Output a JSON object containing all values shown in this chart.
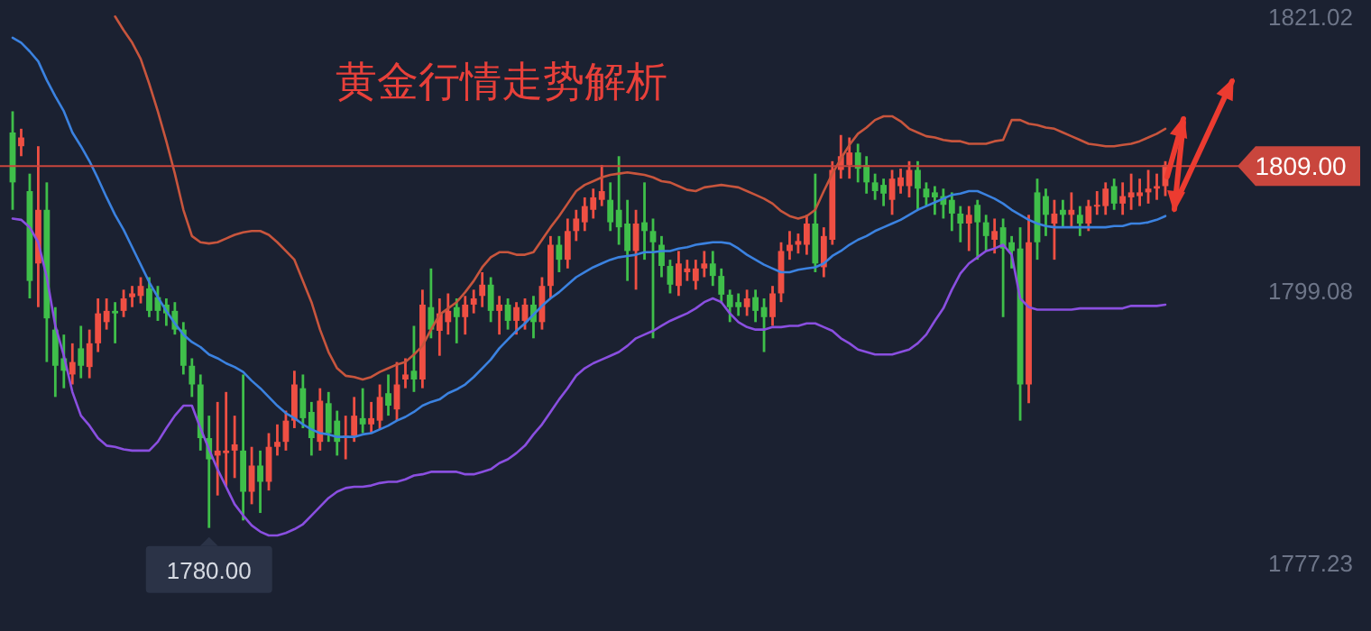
{
  "chart_data": {
    "type": "candlestick",
    "title": "黄金行情走势解析",
    "categories": [
      null,
      null,
      null,
      null,
      null,
      null,
      null,
      null,
      null,
      null,
      null,
      null,
      null,
      null,
      null,
      null,
      null,
      null,
      null,
      null,
      null,
      null,
      null,
      null,
      null,
      null,
      null,
      null,
      null,
      null,
      null,
      null,
      null,
      null,
      null,
      null,
      null,
      null,
      null,
      null,
      null,
      null,
      null,
      null,
      null,
      null,
      null,
      null,
      null,
      null,
      null,
      null,
      null,
      null,
      null,
      null,
      null,
      null,
      null,
      null,
      null,
      null,
      null,
      null,
      null,
      null,
      null,
      null,
      null,
      null,
      null,
      null,
      null,
      null,
      null,
      null,
      null,
      null,
      null,
      null,
      null,
      null,
      null,
      null,
      null,
      null,
      null,
      null,
      null,
      null,
      null,
      null,
      null,
      null,
      null,
      null,
      null,
      null,
      null,
      null,
      null,
      null,
      null,
      null,
      null,
      null,
      null,
      null,
      null,
      null,
      null,
      null,
      null,
      null,
      null,
      null,
      null,
      null,
      null,
      null,
      null,
      null,
      null,
      null,
      null,
      null,
      null,
      null,
      null,
      null,
      null,
      null,
      null,
      null,
      null,
      null
    ],
    "ohlc": [
      [
        1811.7,
        1813.4,
        1805.5,
        1807.7
      ],
      [
        1810.6,
        1812.0,
        1809.8,
        1811.3
      ],
      [
        1807.0,
        1808.4,
        1798.4,
        1799.8
      ],
      [
        1801.2,
        1810.6,
        1797.7,
        1805.5
      ],
      [
        1805.5,
        1807.7,
        1793.3,
        1796.8
      ],
      [
        1795.9,
        1797.7,
        1790.5,
        1793.0
      ],
      [
        1793.6,
        1795.5,
        1791.2,
        1792.6
      ],
      [
        1792.3,
        1794.8,
        1791.5,
        1793.3
      ],
      [
        1794.4,
        1796.2,
        1792.0,
        1793.0
      ],
      [
        1792.9,
        1795.9,
        1792.0,
        1794.8
      ],
      [
        1794.8,
        1798.4,
        1794.1,
        1797.2
      ],
      [
        1796.5,
        1798.4,
        1795.9,
        1797.4
      ],
      [
        1797.4,
        1798.1,
        1794.8,
        1797.2
      ],
      [
        1797.4,
        1799.1,
        1796.9,
        1798.4
      ],
      [
        1798.5,
        1799.4,
        1797.7,
        1798.8
      ],
      [
        1798.6,
        1800.1,
        1798.0,
        1799.4
      ],
      [
        1799.2,
        1800.1,
        1796.9,
        1797.4
      ],
      [
        1798.5,
        1799.4,
        1796.6,
        1797.4
      ],
      [
        1797.9,
        1798.4,
        1796.2,
        1797.2
      ],
      [
        1797.4,
        1798.1,
        1795.5,
        1795.9
      ],
      [
        1795.9,
        1796.5,
        1792.3,
        1793.0
      ],
      [
        1793.0,
        1793.6,
        1790.5,
        1791.5
      ],
      [
        1791.5,
        1792.3,
        1786.2,
        1787.2
      ],
      [
        1787.2,
        1789.0,
        1780.0,
        1785.5
      ],
      [
        1785.8,
        1790.1,
        1782.6,
        1786.2
      ],
      [
        1786.0,
        1790.9,
        1783.3,
        1786.2
      ],
      [
        1786.2,
        1789.0,
        1784.0,
        1786.7
      ],
      [
        1786.2,
        1792.3,
        1780.6,
        1782.9
      ],
      [
        1782.9,
        1786.5,
        1781.9,
        1785.0
      ],
      [
        1785.0,
        1786.2,
        1781.2,
        1783.7
      ],
      [
        1783.7,
        1787.6,
        1783.0,
        1786.5
      ],
      [
        1786.5,
        1788.3,
        1785.8,
        1786.9
      ],
      [
        1786.9,
        1789.4,
        1786.2,
        1788.6
      ],
      [
        1788.6,
        1792.6,
        1788.0,
        1791.5
      ],
      [
        1791.2,
        1792.3,
        1788.0,
        1788.8
      ],
      [
        1789.3,
        1790.1,
        1785.8,
        1787.2
      ],
      [
        1786.9,
        1791.2,
        1786.2,
        1790.2
      ],
      [
        1790.0,
        1790.9,
        1786.9,
        1787.6
      ],
      [
        1788.6,
        1789.4,
        1785.8,
        1786.9
      ],
      [
        1787.2,
        1789.0,
        1785.5,
        1787.4
      ],
      [
        1787.4,
        1790.5,
        1786.9,
        1789.0
      ],
      [
        1788.8,
        1791.2,
        1787.6,
        1788.3
      ],
      [
        1788.3,
        1790.1,
        1787.6,
        1788.8
      ],
      [
        1788.6,
        1791.5,
        1787.9,
        1790.5
      ],
      [
        1790.8,
        1792.3,
        1789.0,
        1789.8
      ],
      [
        1789.5,
        1793.3,
        1788.6,
        1791.5
      ],
      [
        1791.9,
        1793.6,
        1791.2,
        1792.3
      ],
      [
        1792.6,
        1796.2,
        1790.9,
        1791.9
      ],
      [
        1791.9,
        1799.1,
        1791.2,
        1797.9
      ],
      [
        1797.7,
        1800.8,
        1795.2,
        1795.9
      ],
      [
        1795.8,
        1798.4,
        1793.8,
        1797.2
      ],
      [
        1796.5,
        1798.8,
        1795.5,
        1797.4
      ],
      [
        1797.7,
        1798.4,
        1794.8,
        1796.9
      ],
      [
        1796.9,
        1798.6,
        1795.5,
        1797.9
      ],
      [
        1797.9,
        1799.1,
        1797.2,
        1798.4
      ],
      [
        1798.6,
        1800.5,
        1797.7,
        1799.5
      ],
      [
        1799.5,
        1800.1,
        1796.5,
        1797.4
      ],
      [
        1797.4,
        1798.6,
        1795.5,
        1797.9
      ],
      [
        1797.9,
        1798.4,
        1795.9,
        1796.6
      ],
      [
        1796.6,
        1798.1,
        1795.5,
        1797.7
      ],
      [
        1796.6,
        1798.4,
        1795.9,
        1797.9
      ],
      [
        1797.9,
        1798.6,
        1795.2,
        1796.5
      ],
      [
        1796.5,
        1800.1,
        1795.9,
        1799.4
      ],
      [
        1799.4,
        1803.4,
        1798.4,
        1802.7
      ],
      [
        1802.7,
        1803.4,
        1800.5,
        1801.5
      ],
      [
        1801.5,
        1804.8,
        1800.8,
        1803.8
      ],
      [
        1803.8,
        1805.5,
        1803.0,
        1804.8
      ],
      [
        1804.5,
        1806.5,
        1803.8,
        1805.8
      ],
      [
        1805.5,
        1807.2,
        1804.8,
        1806.5
      ],
      [
        1806.3,
        1809.1,
        1805.8,
        1807.0
      ],
      [
        1806.3,
        1807.7,
        1803.8,
        1804.5
      ],
      [
        1805.5,
        1809.8,
        1802.7,
        1804.1
      ],
      [
        1804.4,
        1806.3,
        1799.8,
        1802.2
      ],
      [
        1802.2,
        1805.5,
        1799.1,
        1804.4
      ],
      [
        1804.5,
        1807.7,
        1801.5,
        1803.8
      ],
      [
        1803.8,
        1804.8,
        1795.2,
        1802.9
      ],
      [
        1802.7,
        1803.4,
        1800.1,
        1801.0
      ],
      [
        1801.0,
        1801.5,
        1798.8,
        1799.5
      ],
      [
        1799.4,
        1802.2,
        1798.6,
        1801.2
      ],
      [
        1800.5,
        1801.5,
        1799.8,
        1800.8
      ],
      [
        1799.8,
        1801.5,
        1799.1,
        1800.8
      ],
      [
        1800.8,
        1802.2,
        1800.1,
        1801.2
      ],
      [
        1801.2,
        1802.2,
        1799.4,
        1800.2
      ],
      [
        1800.2,
        1800.8,
        1798.0,
        1798.7
      ],
      [
        1798.7,
        1799.1,
        1796.5,
        1797.7
      ],
      [
        1798.1,
        1798.8,
        1797.0,
        1797.7
      ],
      [
        1797.7,
        1799.1,
        1797.0,
        1798.4
      ],
      [
        1798.5,
        1799.1,
        1796.5,
        1797.4
      ],
      [
        1797.7,
        1798.4,
        1794.1,
        1796.9
      ],
      [
        1796.9,
        1799.4,
        1796.2,
        1798.8
      ],
      [
        1798.8,
        1802.9,
        1798.1,
        1802.2
      ],
      [
        1802.2,
        1803.8,
        1801.5,
        1802.7
      ],
      [
        1802.7,
        1803.6,
        1802.0,
        1803.0
      ],
      [
        1802.7,
        1805.1,
        1801.9,
        1804.4
      ],
      [
        1804.4,
        1808.4,
        1800.5,
        1801.2
      ],
      [
        1800.9,
        1804.1,
        1800.1,
        1803.4
      ],
      [
        1803.1,
        1809.4,
        1802.7,
        1808.7
      ],
      [
        1808.7,
        1811.5,
        1808.0,
        1809.8
      ],
      [
        1809.1,
        1811.3,
        1808.0,
        1810.1
      ],
      [
        1810.1,
        1810.8,
        1807.7,
        1808.8
      ],
      [
        1809.1,
        1809.8,
        1806.8,
        1807.7
      ],
      [
        1807.7,
        1808.4,
        1806.3,
        1807.0
      ],
      [
        1807.5,
        1808.0,
        1805.8,
        1806.8
      ],
      [
        1806.3,
        1808.7,
        1805.1,
        1808.0
      ],
      [
        1807.4,
        1808.8,
        1806.8,
        1808.1
      ],
      [
        1807.4,
        1809.4,
        1806.5,
        1808.7
      ],
      [
        1808.7,
        1809.4,
        1805.5,
        1807.2
      ],
      [
        1807.2,
        1807.7,
        1805.8,
        1806.5
      ],
      [
        1806.9,
        1807.4,
        1805.1,
        1806.5
      ],
      [
        1806.6,
        1807.2,
        1804.8,
        1805.9
      ],
      [
        1806.3,
        1806.9,
        1803.8,
        1805.2
      ],
      [
        1805.2,
        1805.8,
        1802.9,
        1804.4
      ],
      [
        1804.4,
        1805.8,
        1802.2,
        1805.1
      ],
      [
        1805.9,
        1806.3,
        1801.5,
        1804.5
      ],
      [
        1804.5,
        1805.1,
        1802.2,
        1803.4
      ],
      [
        1803.1,
        1804.8,
        1802.0,
        1803.8
      ],
      [
        1804.1,
        1804.8,
        1796.9,
        1802.4
      ],
      [
        1802.9,
        1803.4,
        1800.8,
        1802.2
      ],
      [
        1802.4,
        1804.1,
        1788.6,
        1791.5
      ],
      [
        1791.5,
        1805.1,
        1790.0,
        1802.9
      ],
      [
        1806.9,
        1808.0,
        1801.5,
        1802.9
      ],
      [
        1806.6,
        1807.2,
        1803.4,
        1805.1
      ],
      [
        1804.4,
        1806.3,
        1801.5,
        1805.2
      ],
      [
        1805.5,
        1806.3,
        1804.1,
        1805.1
      ],
      [
        1805.1,
        1806.9,
        1804.1,
        1805.5
      ],
      [
        1805.1,
        1805.8,
        1803.4,
        1804.4
      ],
      [
        1804.4,
        1806.3,
        1803.8,
        1805.8
      ],
      [
        1805.8,
        1807.0,
        1805.1,
        1805.9
      ],
      [
        1805.8,
        1807.7,
        1805.1,
        1807.2
      ],
      [
        1807.4,
        1808.0,
        1805.5,
        1806.0
      ],
      [
        1806.0,
        1807.7,
        1805.1,
        1806.6
      ],
      [
        1806.5,
        1808.4,
        1805.5,
        1806.9
      ],
      [
        1806.6,
        1808.0,
        1805.8,
        1806.9
      ],
      [
        1806.9,
        1808.7,
        1806.0,
        1807.2
      ],
      [
        1807.2,
        1808.4,
        1806.3,
        1807.4
      ],
      [
        1807.4,
        1809.4,
        1806.6,
        1809.1
      ]
    ],
    "series": [
      {
        "type": "line",
        "color": "#c8553d",
        "values": [
          null,
          null,
          null,
          null,
          null,
          null,
          null,
          null,
          null,
          null,
          null,
          null,
          1821.0,
          1819.9,
          1818.9,
          1817.6,
          1815.6,
          1813.4,
          1811.0,
          1808.4,
          1805.5,
          1803.4,
          1802.9,
          1802.8,
          1802.9,
          1803.2,
          1803.5,
          1803.7,
          1803.8,
          1803.8,
          1803.5,
          1802.9,
          1802.2,
          1801.5,
          1799.8,
          1798.1,
          1795.9,
          1794.1,
          1792.8,
          1792.2,
          1792.1,
          1791.9,
          1792.1,
          1792.5,
          1792.8,
          1793.1,
          1793.3,
          1793.9,
          1794.6,
          1795.9,
          1797.1,
          1797.6,
          1798.1,
          1798.9,
          1799.8,
          1800.9,
          1801.7,
          1802.1,
          1802.1,
          1801.9,
          1801.9,
          1802.1,
          1803.1,
          1804.1,
          1805.0,
          1806.0,
          1807.0,
          1807.5,
          1807.8,
          1808.1,
          1808.3,
          1808.4,
          1808.5,
          1808.4,
          1808.3,
          1808.1,
          1807.8,
          1807.7,
          1807.4,
          1807.1,
          1807.0,
          1807.3,
          1807.4,
          1807.5,
          1807.4,
          1807.3,
          1807.0,
          1806.7,
          1806.4,
          1806.0,
          1805.4,
          1805.0,
          1804.8,
          1805.0,
          1805.5,
          1807.0,
          1808.4,
          1809.6,
          1810.7,
          1811.6,
          1812.1,
          1812.7,
          1813.0,
          1813.0,
          1812.6,
          1812.0,
          1811.7,
          1811.4,
          1811.3,
          1811.1,
          1811.0,
          1811.0,
          1810.8,
          1810.8,
          1810.8,
          1811.0,
          1811.1,
          1812.7,
          1812.7,
          1812.4,
          1812.3,
          1812.1,
          1812.0,
          1811.7,
          1811.4,
          1811.1,
          1810.8,
          1810.7,
          1810.6,
          1810.6,
          1810.7,
          1810.8,
          1811.0,
          1811.3,
          1811.6,
          1812.0
        ]
      },
      {
        "type": "line",
        "color": "#3b82e0",
        "values": [
          1819.3,
          1818.9,
          1818.2,
          1817.4,
          1815.9,
          1814.6,
          1813.4,
          1811.7,
          1810.6,
          1809.4,
          1808.0,
          1806.5,
          1805.1,
          1803.9,
          1802.5,
          1801.1,
          1799.7,
          1798.5,
          1797.4,
          1796.4,
          1795.5,
          1794.9,
          1794.5,
          1793.9,
          1793.6,
          1793.2,
          1792.9,
          1792.5,
          1791.8,
          1791.2,
          1790.5,
          1789.8,
          1789.2,
          1788.8,
          1788.3,
          1787.9,
          1787.6,
          1787.5,
          1787.3,
          1787.3,
          1787.3,
          1787.5,
          1787.6,
          1787.9,
          1788.2,
          1788.6,
          1788.9,
          1789.3,
          1789.8,
          1790.1,
          1790.3,
          1790.8,
          1791.1,
          1791.5,
          1792.1,
          1792.8,
          1793.5,
          1794.4,
          1795.1,
          1795.8,
          1796.4,
          1797.1,
          1797.8,
          1798.4,
          1798.9,
          1799.5,
          1800.1,
          1800.5,
          1800.9,
          1801.2,
          1801.5,
          1801.7,
          1801.8,
          1801.9,
          1802.1,
          1802.1,
          1802.2,
          1802.2,
          1802.4,
          1802.5,
          1802.7,
          1802.8,
          1802.9,
          1802.9,
          1802.8,
          1802.4,
          1801.9,
          1801.5,
          1801.1,
          1800.8,
          1800.5,
          1800.5,
          1800.7,
          1800.8,
          1800.9,
          1801.2,
          1801.8,
          1802.2,
          1802.7,
          1803.1,
          1803.4,
          1803.8,
          1804.1,
          1804.4,
          1804.7,
          1805.1,
          1805.5,
          1805.8,
          1806.1,
          1806.4,
          1806.7,
          1806.8,
          1807.0,
          1807.0,
          1806.7,
          1806.4,
          1806.0,
          1805.5,
          1805.1,
          1804.7,
          1804.4,
          1804.2,
          1804.1,
          1804.1,
          1804.1,
          1804.1,
          1804.1,
          1804.1,
          1804.1,
          1804.2,
          1804.2,
          1804.4,
          1804.4,
          1804.5,
          1804.7,
          1805.0
        ]
      },
      {
        "type": "line",
        "color": "#8a4fe0",
        "values": [
          1804.8,
          1804.7,
          1804.1,
          1802.9,
          1800.1,
          1796.2,
          1793.8,
          1790.9,
          1789.0,
          1788.2,
          1787.2,
          1786.6,
          1786.5,
          1786.3,
          1786.2,
          1786.2,
          1786.2,
          1786.9,
          1788.0,
          1789.0,
          1789.8,
          1789.8,
          1788.0,
          1786.3,
          1784.7,
          1783.3,
          1781.9,
          1781.0,
          1780.2,
          1779.7,
          1779.4,
          1779.4,
          1779.6,
          1779.9,
          1780.3,
          1781.0,
          1781.7,
          1782.4,
          1782.9,
          1783.2,
          1783.3,
          1783.3,
          1783.4,
          1783.6,
          1783.7,
          1783.7,
          1783.9,
          1784.2,
          1784.3,
          1784.5,
          1784.5,
          1784.5,
          1784.5,
          1784.3,
          1784.3,
          1784.5,
          1784.7,
          1785.2,
          1785.5,
          1786.0,
          1786.6,
          1787.5,
          1788.3,
          1789.3,
          1790.3,
          1791.2,
          1792.2,
          1792.8,
          1793.2,
          1793.5,
          1793.8,
          1794.1,
          1794.6,
          1795.2,
          1795.5,
          1795.8,
          1796.2,
          1796.6,
          1796.9,
          1797.2,
          1797.6,
          1798.1,
          1798.4,
          1798.1,
          1797.2,
          1796.5,
          1796.1,
          1795.9,
          1795.9,
          1796.1,
          1796.1,
          1796.2,
          1796.2,
          1796.4,
          1796.4,
          1796.1,
          1795.8,
          1795.2,
          1794.8,
          1794.3,
          1794.1,
          1793.9,
          1793.9,
          1793.9,
          1794.1,
          1794.3,
          1794.8,
          1795.5,
          1796.6,
          1797.6,
          1799.1,
          1800.4,
          1801.2,
          1801.7,
          1802.2,
          1802.4,
          1802.7,
          1801.9,
          1798.4,
          1797.7,
          1797.5,
          1797.5,
          1797.5,
          1797.5,
          1797.5,
          1797.6,
          1797.6,
          1797.6,
          1797.6,
          1797.6,
          1797.6,
          1797.8,
          1797.8,
          1797.8,
          1797.8,
          1797.9
        ]
      }
    ],
    "ylim": [
      1777.23,
      1821.02
    ],
    "yticks": [
      1821.02,
      1799.08,
      1777.23
    ],
    "tick_labels": "y",
    "ref_lines": [
      {
        "axis": "y",
        "value": 1809.0,
        "label": "1809.00",
        "color": "#c9463d"
      }
    ],
    "annotations": [
      {
        "text": "1780.00",
        "y": 1780.0
      }
    ]
  }
}
